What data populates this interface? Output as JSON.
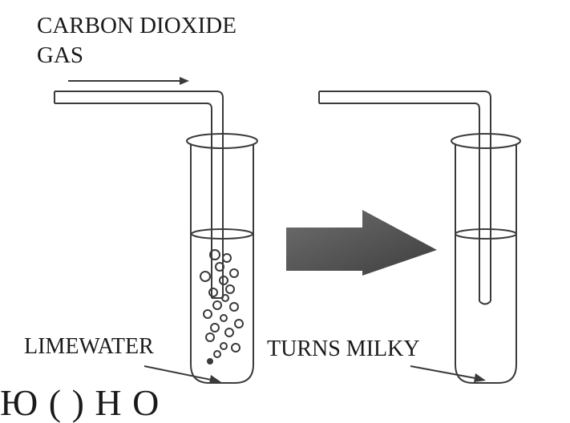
{
  "labels": {
    "gas_line1": "CARBON DIOXIDE",
    "gas_line2": "GAS",
    "limewater": "LIMEWATER",
    "turns_milky": "TURNS MILKY",
    "cut_text": "Ю                    (   )     H O"
  },
  "colors": {
    "outline": "#3a3a3a",
    "arrow_fill": "#5a5a5a",
    "background": "#ffffff"
  },
  "icons": {
    "process_arrow": "right-arrow-icon",
    "pointer_arrow": "thin-arrow-icon"
  }
}
